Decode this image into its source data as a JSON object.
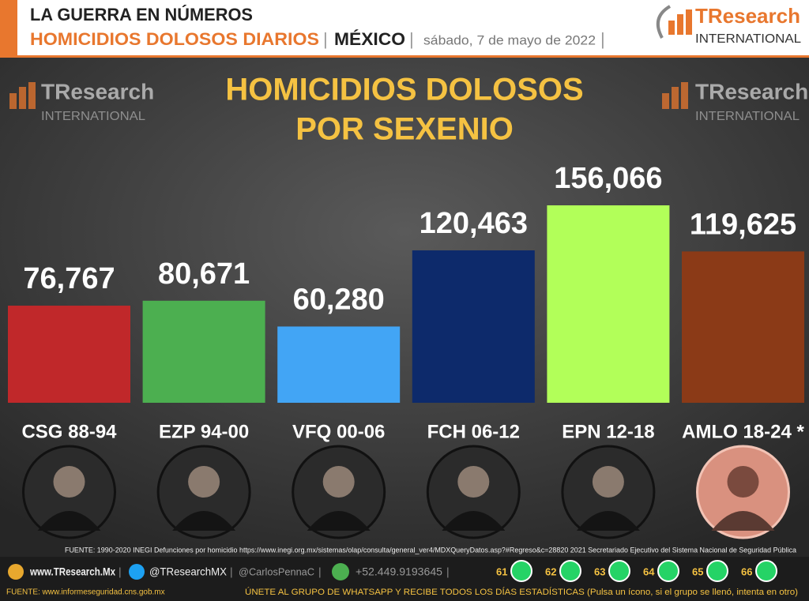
{
  "header": {
    "kicker": "LA GUERRA EN NÚMEROS",
    "section": "HOMICIDIOS DOLOSOS DIARIOS",
    "country": "MÉXICO",
    "date": "sábado, 7 de mayo de 2022",
    "logo_name": "TResearch",
    "logo_sub": "INTERNATIONAL"
  },
  "chart_data": {
    "type": "bar",
    "title": "HOMICIDIOS DOLOSOS",
    "subtitle": "POR SEXENIO",
    "categories": [
      "CSG 88-94",
      "EZP 94-00",
      "VFQ 00-06",
      "FCH 06-12",
      "EPN 12-18",
      "AMLO 18-24 *"
    ],
    "values": [
      76767,
      80671,
      60280,
      120463,
      156066,
      119625
    ],
    "value_labels": [
      "76,767",
      "80,671",
      "60,280",
      "120,463",
      "156,066",
      "119,625"
    ],
    "colors": [
      "#c0282a",
      "#4caf50",
      "#42a5f5",
      "#0d2a6b",
      "#b2ff59",
      "#8b3a17"
    ],
    "source": "FUENTE: 1990-2020 INEGI Defunciones por homicidio https://www.inegi.org.mx/sistemas/olap/consulta/general_ver4/MDXQueryDatos.asp?#Regreso&c=28820   2021 Secretariado Ejecutivo del Sistema Nacional de Seguridad Pública"
  },
  "footer": {
    "website": "www.TResearch.Mx",
    "twitter": "@TResearchMX",
    "twitter2": "@CarlosPennaC",
    "phone": "+52.449.9193645",
    "groups": [
      "61",
      "62",
      "63",
      "64",
      "65",
      "66"
    ],
    "source": "FUENTE: www.informeseguridad.cns.gob.mx",
    "cta": "ÚNETE AL GRUPO DE WHATSAPP Y RECIBE TODOS LOS DÍAS ESTADÍSTICAS (Pulsa un ícono, si el grupo se llenó, intenta en otro)"
  }
}
